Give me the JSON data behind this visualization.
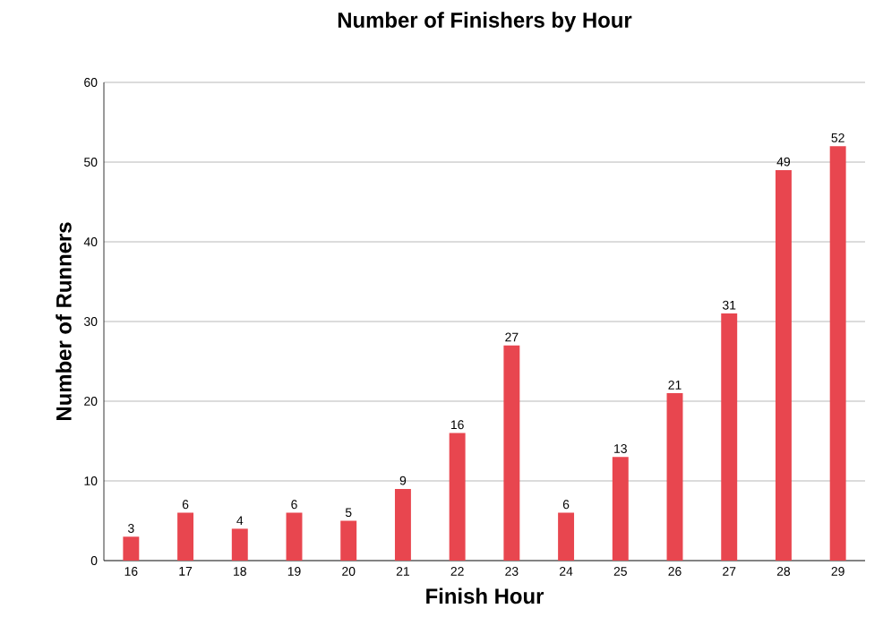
{
  "chart_data": {
    "type": "bar",
    "title": "Number of Finishers by Hour",
    "xlabel": "Finish Hour",
    "ylabel": "Number of Runners",
    "categories": [
      "16",
      "17",
      "18",
      "19",
      "20",
      "21",
      "22",
      "23",
      "24",
      "25",
      "26",
      "27",
      "28",
      "29"
    ],
    "values": [
      3,
      6,
      4,
      6,
      5,
      9,
      16,
      27,
      6,
      13,
      21,
      31,
      49,
      52
    ],
    "color": "#e8464f",
    "ylim": [
      0,
      60
    ],
    "yticks": [
      0,
      10,
      20,
      30,
      40,
      50,
      60
    ],
    "grid": "y",
    "data_labels": true
  }
}
